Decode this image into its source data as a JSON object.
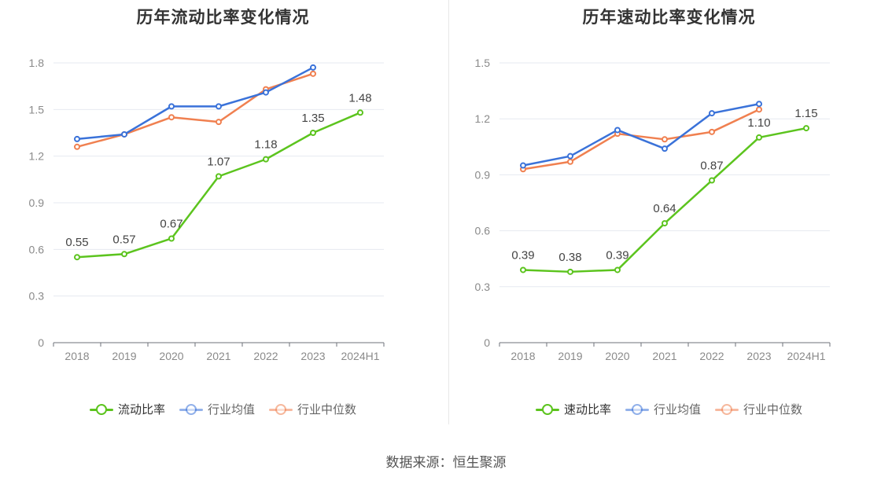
{
  "charts": [
    {
      "title": "历年流动比率变化情况",
      "legend": [
        {
          "name": "流动比率",
          "color": "#5cc41e"
        },
        {
          "name": "行业均值",
          "color": "#3a72d9"
        },
        {
          "name": "行业中位数",
          "color": "#f08050"
        }
      ]
    },
    {
      "title": "历年速动比率变化情况",
      "legend": [
        {
          "name": "速动比率",
          "color": "#5cc41e"
        },
        {
          "name": "行业均值",
          "color": "#3a72d9"
        },
        {
          "name": "行业中位数",
          "color": "#f08050"
        }
      ]
    }
  ],
  "footer": "数据来源：恒生聚源",
  "chart_data": [
    {
      "type": "line",
      "title": "历年流动比率变化情况",
      "categories": [
        "2018",
        "2019",
        "2020",
        "2021",
        "2022",
        "2023",
        "2024H1"
      ],
      "ylim": [
        0,
        1.8
      ],
      "yticks": [
        "0",
        "0.3",
        "0.6",
        "0.9",
        "1.2",
        "1.5",
        "1.8"
      ],
      "grid": true,
      "legend_position": "bottom",
      "series": [
        {
          "name": "流动比率",
          "color": "#5cc41e",
          "labels": true,
          "values": [
            0.55,
            0.57,
            0.67,
            1.07,
            1.18,
            1.35,
            1.48
          ],
          "label_text": [
            "0.55",
            "0.57",
            "0.67",
            "1.07",
            "1.18",
            "1.35",
            "1.48"
          ]
        },
        {
          "name": "行业均值",
          "color": "#3a72d9",
          "values": [
            1.31,
            1.34,
            1.52,
            1.52,
            1.61,
            1.77,
            null
          ]
        },
        {
          "name": "行业中位数",
          "color": "#f08050",
          "values": [
            1.26,
            1.34,
            1.45,
            1.42,
            1.63,
            1.73,
            null
          ]
        }
      ]
    },
    {
      "type": "line",
      "title": "历年速动比率变化情况",
      "categories": [
        "2018",
        "2019",
        "2020",
        "2021",
        "2022",
        "2023",
        "2024H1"
      ],
      "ylim": [
        0,
        1.5
      ],
      "yticks": [
        "0",
        "0.3",
        "0.6",
        "0.9",
        "1.2",
        "1.5"
      ],
      "grid": true,
      "legend_position": "bottom",
      "series": [
        {
          "name": "速动比率",
          "color": "#5cc41e",
          "labels": true,
          "values": [
            0.39,
            0.38,
            0.39,
            0.64,
            0.87,
            1.1,
            1.15
          ],
          "label_text": [
            "0.39",
            "0.38",
            "0.39",
            "0.64",
            "0.87",
            "1.10",
            "1.15"
          ]
        },
        {
          "name": "行业均值",
          "color": "#3a72d9",
          "values": [
            0.95,
            1.0,
            1.14,
            1.04,
            1.23,
            1.28,
            null
          ]
        },
        {
          "name": "行业中位数",
          "color": "#f08050",
          "values": [
            0.93,
            0.97,
            1.12,
            1.09,
            1.13,
            1.25,
            null
          ]
        }
      ]
    }
  ]
}
